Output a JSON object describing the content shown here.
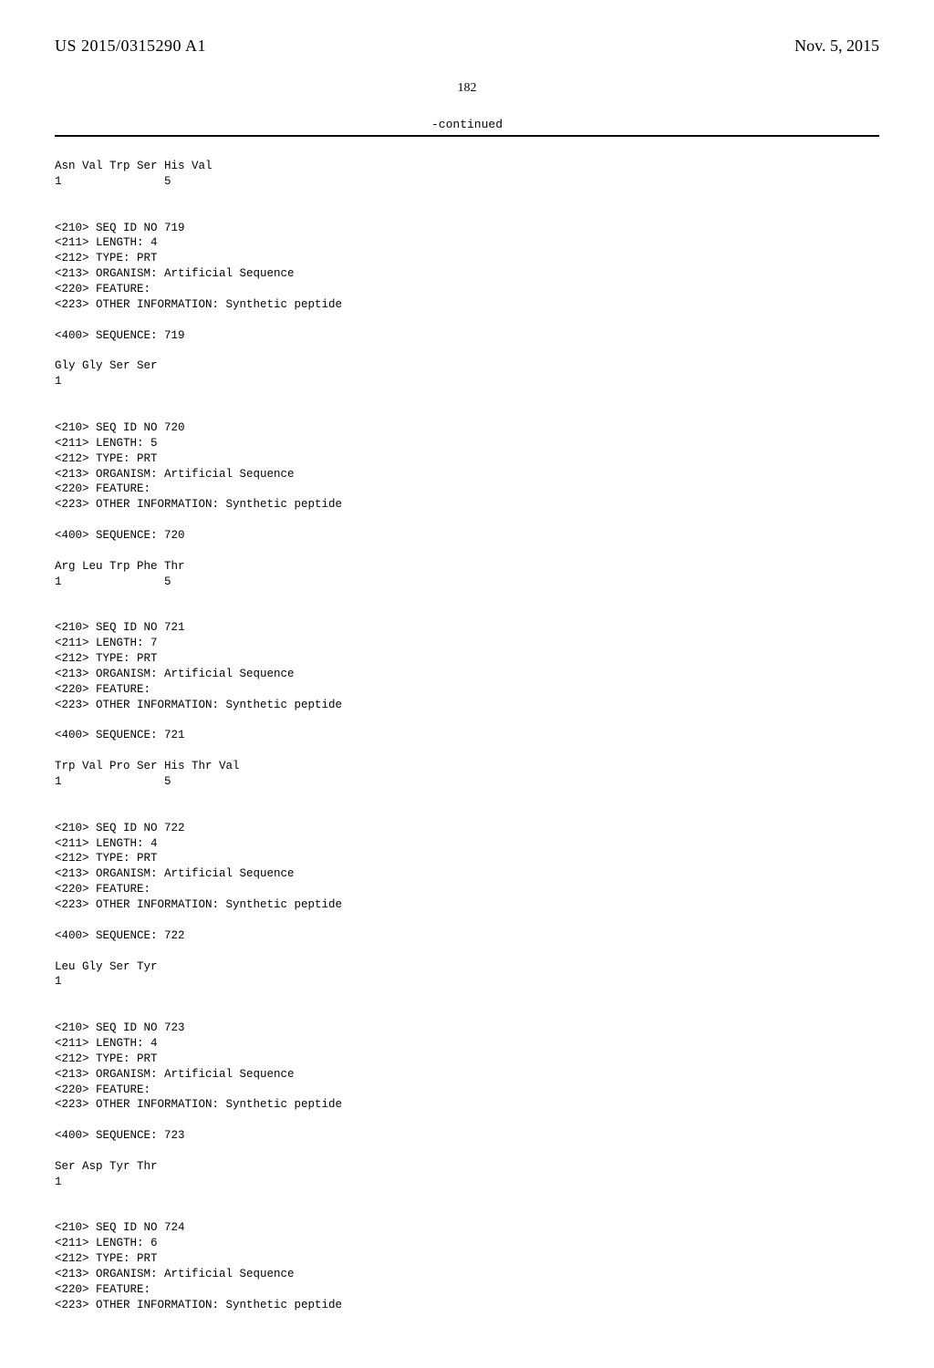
{
  "header": {
    "pubnum": "US 2015/0315290 A1",
    "pubdate": "Nov. 5, 2015"
  },
  "pagenum": "182",
  "continued": "-continued",
  "listing": "Asn Val Trp Ser His Val\n1               5\n\n\n<210> SEQ ID NO 719\n<211> LENGTH: 4\n<212> TYPE: PRT\n<213> ORGANISM: Artificial Sequence\n<220> FEATURE:\n<223> OTHER INFORMATION: Synthetic peptide\n\n<400> SEQUENCE: 719\n\nGly Gly Ser Ser\n1\n\n\n<210> SEQ ID NO 720\n<211> LENGTH: 5\n<212> TYPE: PRT\n<213> ORGANISM: Artificial Sequence\n<220> FEATURE:\n<223> OTHER INFORMATION: Synthetic peptide\n\n<400> SEQUENCE: 720\n\nArg Leu Trp Phe Thr\n1               5\n\n\n<210> SEQ ID NO 721\n<211> LENGTH: 7\n<212> TYPE: PRT\n<213> ORGANISM: Artificial Sequence\n<220> FEATURE:\n<223> OTHER INFORMATION: Synthetic peptide\n\n<400> SEQUENCE: 721\n\nTrp Val Pro Ser His Thr Val\n1               5\n\n\n<210> SEQ ID NO 722\n<211> LENGTH: 4\n<212> TYPE: PRT\n<213> ORGANISM: Artificial Sequence\n<220> FEATURE:\n<223> OTHER INFORMATION: Synthetic peptide\n\n<400> SEQUENCE: 722\n\nLeu Gly Ser Tyr\n1\n\n\n<210> SEQ ID NO 723\n<211> LENGTH: 4\n<212> TYPE: PRT\n<213> ORGANISM: Artificial Sequence\n<220> FEATURE:\n<223> OTHER INFORMATION: Synthetic peptide\n\n<400> SEQUENCE: 723\n\nSer Asp Tyr Thr\n1\n\n\n<210> SEQ ID NO 724\n<211> LENGTH: 6\n<212> TYPE: PRT\n<213> ORGANISM: Artificial Sequence\n<220> FEATURE:\n<223> OTHER INFORMATION: Synthetic peptide"
}
